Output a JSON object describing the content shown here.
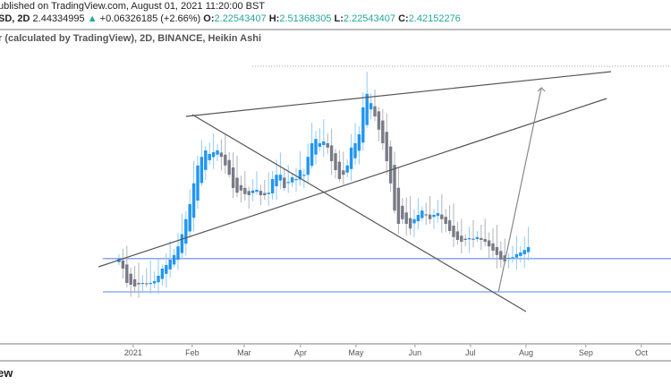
{
  "header": {
    "published": "ublished on TradingView.com, August 01, 2021 11:20:00 BST",
    "symbol": "SD, 2D",
    "last": "2.44334995",
    "change_arrow": "▲",
    "change": "+0.06326185 (+2.66%)",
    "o_label": "O:",
    "o": "2.22543407",
    "h_label": "H:",
    "h": "2.51368305",
    "l_label": "L:",
    "l": "2.22543407",
    "c_label": "C:",
    "c": "2.42152276"
  },
  "subtitle": "r (calculated by TradingView), 2D, BINANCE, Heikin Ashi",
  "footer": "ew",
  "colors": {
    "up": "#2196f3",
    "down": "#787b86",
    "level": "#7b9cf0",
    "trend": "#555555"
  },
  "chart_data": {
    "type": "candlestick",
    "style": "Heikin Ashi",
    "interval": "2D",
    "x_unit": "bar index (2-day bars, starting mid-Dec 2020)",
    "closes": [
      2.26,
      2.12,
      1.92,
      1.895,
      1.87,
      1.9,
      1.92,
      1.9,
      1.92,
      1.945,
      2.02,
      2.12,
      2.17,
      2.245,
      2.31,
      2.43,
      2.6,
      2.81,
      3.02,
      3.31,
      3.56,
      3.68,
      3.77,
      3.72,
      3.745,
      3.77,
      3.68,
      3.56,
      3.43,
      3.245,
      3.18,
      3.21,
      3.16,
      3.145,
      3.21,
      3.22,
      3.145,
      3.145,
      3.18,
      3.37,
      3.43,
      3.43,
      3.245,
      3.33,
      3.395,
      3.37,
      3.495,
      3.43,
      3.68,
      3.87,
      3.93,
      3.87,
      3.895,
      3.81,
      3.62,
      3.495,
      3.37,
      3.43,
      3.56,
      3.81,
      3.87,
      3.995,
      4.37,
      4.56,
      4.43,
      4.245,
      4.06,
      3.87,
      3.62,
      3.31,
      2.93,
      2.745,
      2.81,
      2.745,
      2.68,
      2.81,
      2.87,
      2.93,
      2.87,
      2.81,
      2.87,
      2.895,
      2.81,
      2.745,
      2.645,
      2.56,
      2.52,
      2.495,
      2.52,
      2.545,
      2.53,
      2.56,
      2.52,
      2.495,
      2.43,
      2.37,
      2.31,
      2.245,
      2.22,
      2.27,
      2.28,
      2.32,
      2.345,
      2.38,
      2.42
    ],
    "ylim": [
      1.12,
      5.12
    ],
    "xlim": [
      -30,
      140
    ],
    "x_ticks": [
      {
        "label": "2021",
        "bar": 3.6
      },
      {
        "label": "Feb",
        "bar": 18.6
      },
      {
        "label": "Mar",
        "bar": 31.8
      },
      {
        "label": "Apr",
        "bar": 46.1
      },
      {
        "label": "May",
        "bar": 60.2
      },
      {
        "label": "Jun",
        "bar": 75.2
      },
      {
        "label": "Jul",
        "bar": 89.3
      },
      {
        "label": "Aug",
        "bar": 103.4
      },
      {
        "label": "Sep",
        "bar": 118.6
      },
      {
        "label": "Oct",
        "bar": 132.7
      }
    ],
    "horizontal_levels": [
      2.26,
      1.795
    ],
    "dotted_level": {
      "price": 4.945,
      "from_bar": 33.9
    },
    "trendlines": [
      {
        "name": "upper-resistance",
        "from": [
          17,
          4.245
        ],
        "to": [
          125,
          4.87
        ]
      },
      {
        "name": "rising-support",
        "from": [
          -5.2,
          2.145
        ],
        "to": [
          123.9,
          4.495
        ]
      },
      {
        "name": "falling-line",
        "from": [
          18.6,
          4.27
        ],
        "to": [
          103.4,
          1.52
        ]
      }
    ],
    "projection_arrow": {
      "from": [
        96.4,
        1.795
      ],
      "to": [
        107.3,
        4.645
      ]
    }
  }
}
